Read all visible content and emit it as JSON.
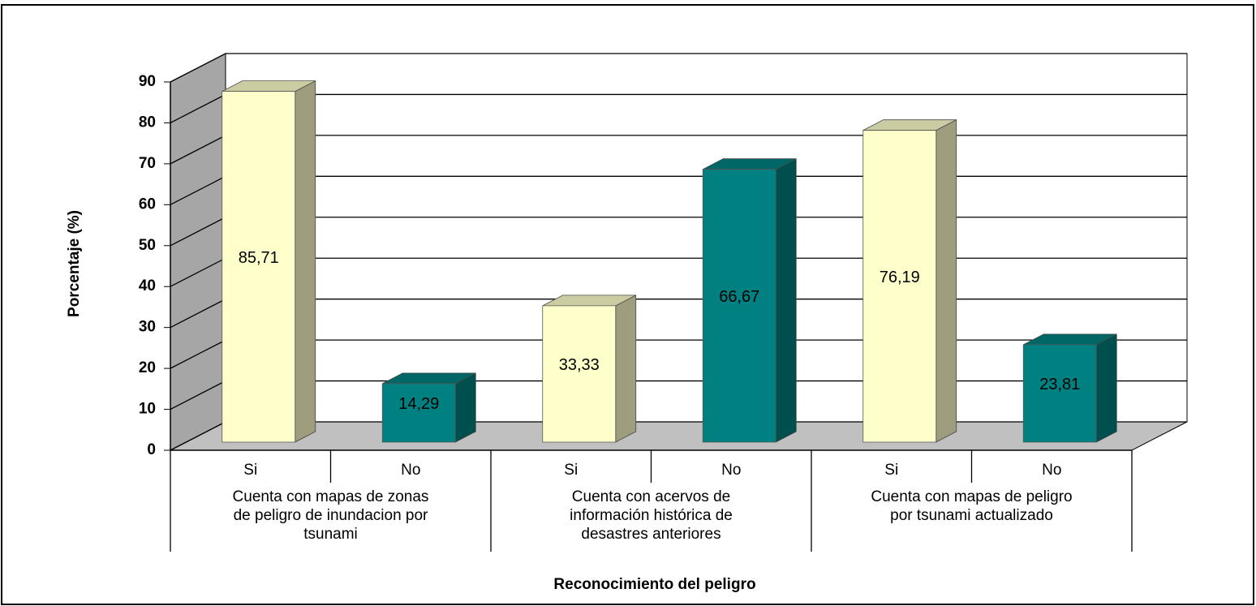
{
  "chart_data": {
    "type": "bar3d",
    "categories": [
      "Si",
      "No",
      "Si",
      "No",
      "Si",
      "No"
    ],
    "values": [
      85.71,
      14.29,
      33.33,
      66.67,
      76.19,
      23.81
    ],
    "value_labels": [
      "85,71",
      "14,29",
      "33,33",
      "66,67",
      "76,19",
      "23,81"
    ],
    "colors": [
      "#ffffcc",
      "#008080",
      "#ffffcc",
      "#008080",
      "#ffffcc",
      "#008080"
    ],
    "groups": [
      [
        "Cuenta con mapas de zonas",
        "de peligro de inundacion por",
        "tsunami"
      ],
      [
        "Cuenta con acervos de",
        "información histórica de",
        "desastres anteriores"
      ],
      [
        "Cuenta con mapas de peligro",
        "por tsunami actualizado"
      ]
    ],
    "xlabel": "Reconocimiento del peligro",
    "ylabel": "Porcentaje (%)",
    "ylim": [
      0,
      90
    ],
    "yticks": [
      0,
      10,
      20,
      30,
      40,
      50,
      60,
      70,
      80,
      90
    ],
    "grid": true
  }
}
